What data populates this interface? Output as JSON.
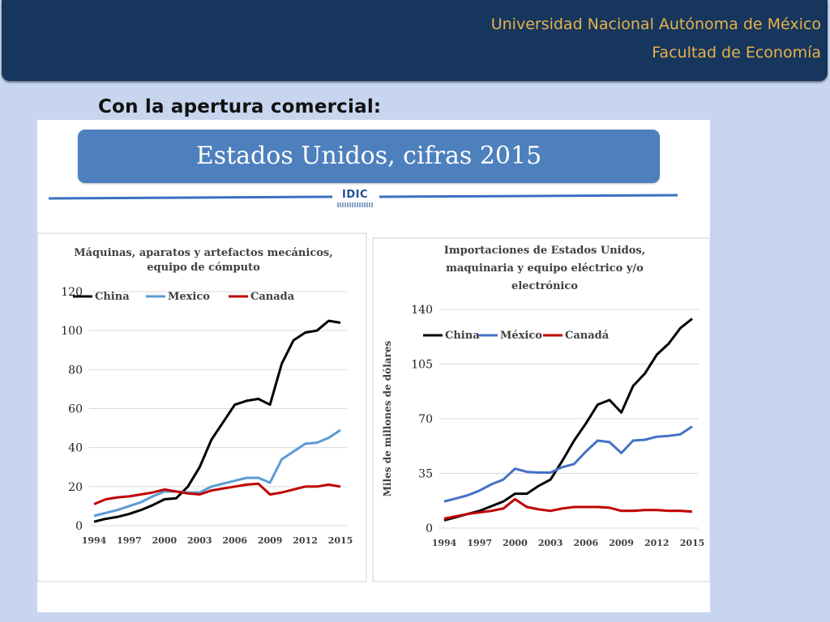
{
  "header": {
    "institution": "Universidad Nacional Autónoma de México",
    "faculty": "Facultad de Economía"
  },
  "slide": {
    "subtitle": "Con la apertura comercial:",
    "banner": "Estados Unidos, cifras 2015",
    "logo": "IDIC"
  },
  "colors": {
    "header_bg": "#17365d",
    "header_text": "#e6b24a",
    "banner_bg": "#4e80bd",
    "china": "#000000",
    "mexico_left": "#5b9bd5",
    "mexico_right": "#4472c4",
    "canada": "#c00000"
  },
  "chart_data": [
    {
      "type": "line",
      "title": "Máquinas, aparatos y artefactos mecánicos, equipo de cómputo",
      "title_lines": [
        "Máquinas, aparatos y artefactos mecánicos,",
        "equipo de cómputo"
      ],
      "xlabel": "",
      "ylabel": "",
      "ylim": [
        0,
        120
      ],
      "yticks": [
        "0",
        "20",
        "40",
        "60",
        "80",
        "100",
        "120"
      ],
      "xticks": [
        "1994",
        "1997",
        "2000",
        "2003",
        "2006",
        "2009",
        "2012",
        "2015"
      ],
      "x": [
        1994,
        1995,
        1996,
        1997,
        1998,
        1999,
        2000,
        2001,
        2002,
        2003,
        2004,
        2005,
        2006,
        2007,
        2008,
        2009,
        2010,
        2011,
        2012,
        2013,
        2014,
        2015
      ],
      "grid": true,
      "legend": "top",
      "series": [
        {
          "name": "China",
          "values": [
            2,
            3.5,
            4.5,
            6,
            8,
            10.5,
            13.5,
            14,
            20,
            30,
            44,
            53,
            62,
            64,
            65,
            62,
            83,
            95,
            99,
            100,
            105,
            104
          ]
        },
        {
          "name": "Mexico",
          "values": [
            5,
            6.5,
            8,
            10,
            12,
            15,
            17.5,
            17.5,
            17,
            17,
            20,
            21.5,
            23,
            24.5,
            24.5,
            22,
            34,
            38,
            42,
            42.5,
            45,
            49
          ]
        },
        {
          "name": "Canada",
          "values": [
            11,
            13.5,
            14.5,
            15,
            16,
            17,
            18.5,
            17.5,
            16.5,
            16,
            18,
            19,
            20,
            21,
            21.5,
            16,
            17,
            18.5,
            20,
            20,
            21,
            20
          ]
        }
      ]
    },
    {
      "type": "line",
      "title": "Importaciones de Estados Unidos, maquinaria y equipo eléctrico y/o electrónico",
      "title_lines": [
        "Importaciones de Estados Unidos,",
        "maquinaria y equipo eléctrico y/o",
        "electrónico"
      ],
      "xlabel": "",
      "ylabel": "Miles de millones de dólares",
      "ylim": [
        0,
        140
      ],
      "yticks": [
        "0",
        "35",
        "70",
        "105",
        "140"
      ],
      "xticks": [
        "1994",
        "1997",
        "2000",
        "2003",
        "2006",
        "2009",
        "2012",
        "2015"
      ],
      "x": [
        1994,
        1995,
        1996,
        1997,
        1998,
        1999,
        2000,
        2001,
        2002,
        2003,
        2004,
        2005,
        2006,
        2007,
        2008,
        2009,
        2010,
        2011,
        2012,
        2013,
        2014,
        2015
      ],
      "grid": true,
      "legend": "top",
      "series": [
        {
          "name": "China",
          "values": [
            5,
            7,
            9,
            11,
            14,
            17,
            22,
            22,
            27,
            31,
            43,
            56,
            67,
            79,
            82,
            74,
            91,
            99,
            111,
            118,
            128,
            134
          ]
        },
        {
          "name": "México",
          "values": [
            17,
            19,
            21,
            24,
            28,
            31,
            38,
            36,
            35.5,
            35.5,
            39,
            41,
            49,
            56,
            55,
            48,
            56,
            56.5,
            58.5,
            59,
            60,
            65
          ]
        },
        {
          "name": "Canadá",
          "values": [
            6,
            7.5,
            9,
            10,
            11,
            12.5,
            18.5,
            13.5,
            12,
            11,
            12.5,
            13.5,
            13.5,
            13.5,
            13,
            11,
            11,
            11.5,
            11.5,
            11,
            11,
            10.5
          ]
        }
      ]
    }
  ]
}
